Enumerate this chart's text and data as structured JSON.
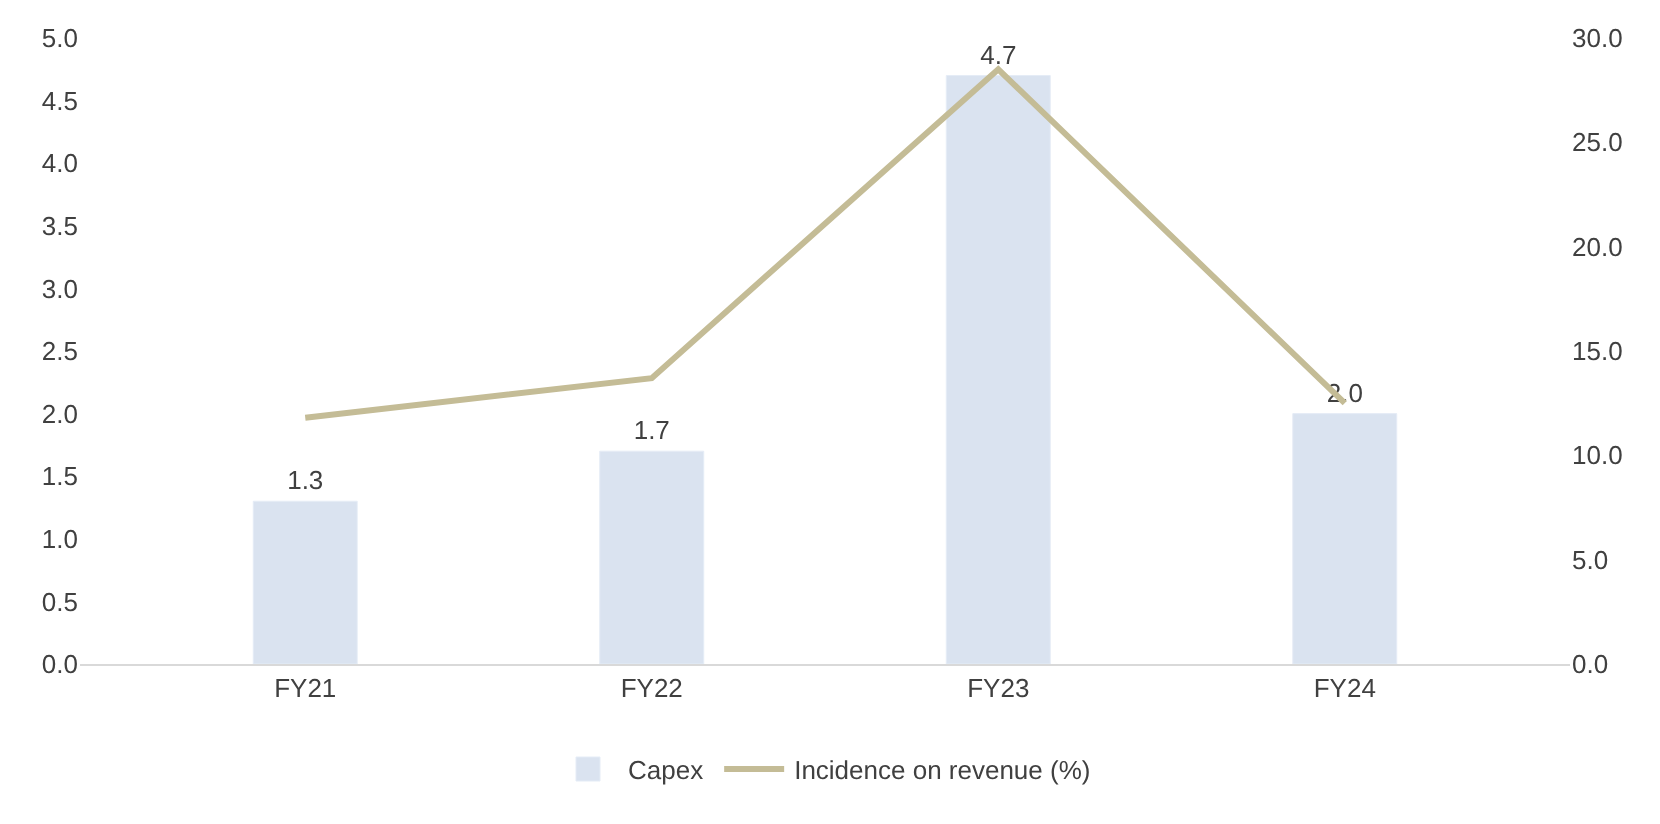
{
  "chart_data": {
    "type": "bar",
    "categories": [
      "FY21",
      "FY22",
      "FY23",
      "FY24"
    ],
    "series": [
      {
        "name": "Capex",
        "color": "#dae3f0",
        "values": [
          1.3,
          1.7,
          4.7,
          2.0
        ],
        "value_labels": [
          "1.3",
          "1.7",
          "4.7",
          "2.0"
        ]
      },
      {
        "name": "Incidence on revenue (%)",
        "type": "line",
        "axis": "y2",
        "color": "#c4bc96",
        "values": [
          11.8,
          13.7,
          28.5,
          12.5
        ]
      }
    ],
    "ylim": [
      0,
      5
    ],
    "yticks": [
      {
        "value": 0,
        "label": "0.0"
      },
      {
        "value": 0.5,
        "label": "0.5"
      },
      {
        "value": 1,
        "label": "1.0"
      },
      {
        "value": 1.5,
        "label": "1.5"
      },
      {
        "value": 2,
        "label": "2.0"
      },
      {
        "value": 2.5,
        "label": "2.5"
      },
      {
        "value": 3,
        "label": "3.0"
      },
      {
        "value": 3.5,
        "label": "3.5"
      },
      {
        "value": 4,
        "label": "4.0"
      },
      {
        "value": 4.5,
        "label": "4.5"
      },
      {
        "value": 5,
        "label": "5.0"
      }
    ],
    "y2lim": [
      0,
      30
    ],
    "y2ticks": [
      {
        "value": 0,
        "label": "0.0"
      },
      {
        "value": 5,
        "label": "5.0"
      },
      {
        "value": 10,
        "label": "10.0"
      },
      {
        "value": 15,
        "label": "15.0"
      },
      {
        "value": 20,
        "label": "20.0"
      },
      {
        "value": 25,
        "label": "25.0"
      },
      {
        "value": 30,
        "label": "30.0"
      }
    ],
    "legend": "bottom",
    "marker": "none",
    "line_style": "solid"
  }
}
